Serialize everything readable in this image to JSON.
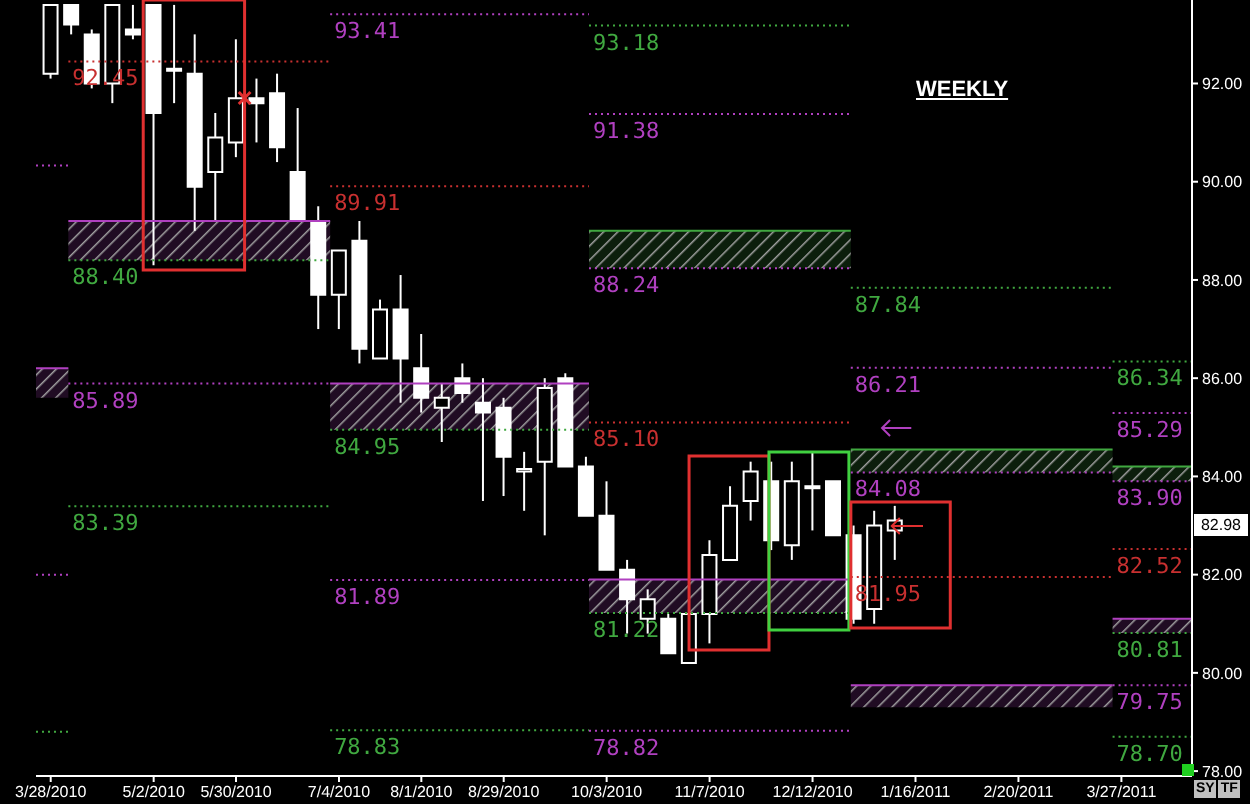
{
  "chart_data": {
    "type": "candlestick",
    "title": "WEEKLY",
    "color": "#ffffff",
    "legend": false,
    "grid": false,
    "marker": "none",
    "annotations": [
      {
        "text": "82.98",
        "y": 82.98
      },
      "SY",
      "TF"
    ],
    "xlim": [
      "2010-03-23",
      "2011-04-20"
    ],
    "xticks": [
      {
        "value": "2010-03-28",
        "label": "3/28/2010"
      },
      {
        "value": "2010-05-02",
        "label": "5/2/2010"
      },
      {
        "value": "2010-05-30",
        "label": "5/30/2010"
      },
      {
        "value": "2010-07-04",
        "label": "7/4/2010"
      },
      {
        "value": "2010-08-01",
        "label": "8/1/2010"
      },
      {
        "value": "2010-08-29",
        "label": "8/29/2010"
      },
      {
        "value": "2010-10-03",
        "label": "10/3/2010"
      },
      {
        "value": "2010-11-07",
        "label": "11/7/2010"
      },
      {
        "value": "2010-12-12",
        "label": "12/12/2010"
      },
      {
        "value": "2011-01-16",
        "label": "1/16/2011"
      },
      {
        "value": "2011-02-20",
        "label": "2/20/2011"
      },
      {
        "value": "2011-03-27",
        "label": "3/27/2011"
      }
    ],
    "ylim": [
      77.9,
      93.7
    ],
    "yticks": [
      {
        "value": 78,
        "label": "78.00"
      },
      {
        "value": 80,
        "label": "80.00"
      },
      {
        "value": 82,
        "label": "82.00"
      },
      {
        "value": 84,
        "label": "84.00"
      },
      {
        "value": 86,
        "label": "86.00"
      },
      {
        "value": 88,
        "label": "88.00"
      },
      {
        "value": 90,
        "label": "90.00"
      },
      {
        "value": 92,
        "label": "92.00"
      }
    ],
    "x": [
      "2010-03-28",
      "2010-04-04",
      "2010-04-11",
      "2010-04-18",
      "2010-04-25",
      "2010-05-02",
      "2010-05-09",
      "2010-05-16",
      "2010-05-23",
      "2010-05-30",
      "2010-06-06",
      "2010-06-13",
      "2010-06-20",
      "2010-06-27",
      "2010-07-04",
      "2010-07-11",
      "2010-07-18",
      "2010-07-25",
      "2010-08-01",
      "2010-08-08",
      "2010-08-15",
      "2010-08-22",
      "2010-08-29",
      "2010-09-05",
      "2010-09-12",
      "2010-09-19",
      "2010-09-26",
      "2010-10-03",
      "2010-10-10",
      "2010-10-17",
      "2010-10-24",
      "2010-10-31",
      "2010-11-07",
      "2010-11-14",
      "2010-11-21",
      "2010-11-28",
      "2010-12-05",
      "2010-12-12",
      "2010-12-19",
      "2010-12-26",
      "2011-01-02",
      "2011-01-09"
    ],
    "ohlc": [
      [
        92.2,
        93.6,
        92.1,
        93.6
      ],
      [
        93.6,
        93.6,
        93.0,
        93.2
      ],
      [
        93.0,
        93.1,
        91.9,
        92.0
      ],
      [
        92.0,
        93.6,
        91.6,
        93.6
      ],
      [
        93.1,
        93.6,
        92.9,
        93.0
      ],
      [
        93.6,
        93.6,
        88.3,
        91.4
      ],
      [
        92.3,
        93.6,
        91.6,
        92.3
      ],
      [
        92.2,
        93.0,
        89.0,
        89.9
      ],
      [
        90.2,
        91.4,
        89.2,
        90.9
      ],
      [
        90.8,
        92.9,
        90.5,
        91.7
      ],
      [
        91.7,
        92.1,
        90.8,
        91.6
      ],
      [
        91.8,
        92.2,
        90.4,
        90.7
      ],
      [
        90.2,
        91.5,
        89.2,
        89.2
      ],
      [
        89.2,
        89.5,
        87.0,
        87.7
      ],
      [
        87.7,
        88.6,
        87.0,
        88.6
      ],
      [
        88.8,
        89.2,
        86.3,
        86.6
      ],
      [
        86.4,
        87.6,
        86.4,
        87.4
      ],
      [
        87.4,
        88.1,
        85.5,
        86.4
      ],
      [
        86.2,
        86.9,
        85.3,
        85.6
      ],
      [
        85.4,
        85.9,
        84.7,
        85.6
      ],
      [
        86.0,
        86.3,
        85.5,
        85.7
      ],
      [
        85.5,
        86.0,
        83.5,
        85.3
      ],
      [
        85.4,
        85.6,
        83.6,
        84.4
      ],
      [
        84.1,
        84.5,
        83.3,
        84.15
      ],
      [
        84.3,
        86.0,
        82.8,
        85.8
      ],
      [
        86.0,
        86.1,
        84.2,
        84.2
      ],
      [
        84.2,
        84.4,
        83.2,
        83.2
      ],
      [
        83.2,
        83.9,
        82.1,
        82.1
      ],
      [
        82.1,
        82.3,
        80.8,
        81.5
      ],
      [
        81.1,
        81.7,
        80.8,
        81.5
      ],
      [
        81.1,
        81.2,
        80.4,
        80.4
      ],
      [
        80.2,
        81.2,
        80.2,
        81.2
      ],
      [
        81.2,
        82.7,
        80.6,
        82.4
      ],
      [
        82.3,
        83.8,
        82.3,
        83.4
      ],
      [
        83.5,
        84.3,
        83.1,
        84.1
      ],
      [
        83.9,
        84.3,
        82.5,
        82.7
      ],
      [
        82.6,
        84.3,
        82.3,
        83.9
      ],
      [
        83.8,
        84.5,
        82.9,
        83.8
      ],
      [
        83.9,
        83.9,
        82.8,
        82.8
      ],
      [
        82.8,
        83.0,
        81.0,
        81.1
      ],
      [
        81.3,
        83.3,
        81.0,
        83.0
      ],
      [
        82.9,
        83.4,
        82.3,
        83.1
      ]
    ],
    "series": [
      {
        "type": "line",
        "color": "#b040c0",
        "line_style": "dotted",
        "x": [
          "2010-03-23",
          "2010-04-03"
        ],
        "values": [
          90.33,
          90.33
        ]
      },
      {
        "type": "line",
        "color": "#b040c0",
        "line_style": "solid",
        "x": [
          "2010-03-23",
          "2010-04-03"
        ],
        "values": [
          86.2,
          86.2
        ],
        "upper": [
          86.2,
          86.2
        ],
        "lower": [
          85.6,
          85.6
        ]
      },
      {
        "type": "line",
        "color": "#b040c0",
        "line_style": "dotted",
        "x": [
          "2010-03-23",
          "2010-04-03"
        ],
        "values": [
          82.0,
          82.0
        ]
      },
      {
        "type": "line",
        "color": "#40a840",
        "line_style": "dotted",
        "x": [
          "2010-03-23",
          "2010-04-03"
        ],
        "values": [
          78.8,
          78.8
        ]
      },
      {
        "type": "line",
        "name": "92.45",
        "color": "#c83030",
        "line_style": "dotted",
        "x": [
          "2010-04-03",
          "2010-07-01"
        ],
        "values": [
          92.45,
          92.45
        ]
      },
      {
        "type": "line",
        "color": "#b040c0",
        "line_style": "solid",
        "x": [
          "2010-04-03",
          "2010-07-01"
        ],
        "values": [
          89.2,
          89.2
        ],
        "upper": [
          89.2,
          89.2
        ],
        "lower": [
          88.4,
          88.4
        ]
      },
      {
        "type": "line",
        "name": "88.40",
        "color": "#40a840",
        "line_style": "dotted",
        "x": [
          "2010-04-03",
          "2010-07-01"
        ],
        "values": [
          88.4,
          88.4
        ]
      },
      {
        "type": "line",
        "name": "85.89",
        "color": "#b040c0",
        "line_style": "dotted",
        "x": [
          "2010-04-03",
          "2010-07-01"
        ],
        "values": [
          85.89,
          85.89
        ]
      },
      {
        "type": "line",
        "name": "83.39",
        "color": "#40a840",
        "line_style": "dotted",
        "x": [
          "2010-04-03",
          "2010-07-01"
        ],
        "values": [
          83.39,
          83.39
        ]
      },
      {
        "type": "line",
        "name": "93.41",
        "color": "#b040c0",
        "line_style": "dotted",
        "x": [
          "2010-07-01",
          "2010-09-27"
        ],
        "values": [
          93.41,
          93.41
        ]
      },
      {
        "type": "line",
        "name": "89.91",
        "color": "#c83030",
        "line_style": "dotted",
        "x": [
          "2010-07-01",
          "2010-09-27"
        ],
        "values": [
          89.91,
          89.91
        ]
      },
      {
        "type": "line",
        "color": "#b040c0",
        "line_style": "solid",
        "x": [
          "2010-07-01",
          "2010-09-27"
        ],
        "values": [
          85.89,
          85.89
        ],
        "upper": [
          85.89,
          85.89
        ],
        "lower": [
          84.95,
          84.95
        ]
      },
      {
        "type": "line",
        "name": "84.95",
        "color": "#40a840",
        "line_style": "dotted",
        "x": [
          "2010-07-01",
          "2010-09-27"
        ],
        "values": [
          84.95,
          84.95
        ]
      },
      {
        "type": "line",
        "name": "81.89",
        "color": "#b040c0",
        "line_style": "dotted",
        "x": [
          "2010-07-01",
          "2010-09-27"
        ],
        "values": [
          81.89,
          81.89
        ]
      },
      {
        "type": "line",
        "name": "78.83",
        "color": "#40a840",
        "line_style": "dotted",
        "x": [
          "2010-07-01",
          "2010-09-27"
        ],
        "values": [
          78.83,
          78.83
        ]
      },
      {
        "type": "line",
        "name": "93.18",
        "color": "#40a840",
        "line_style": "dotted",
        "x": [
          "2010-09-27",
          "2010-12-25"
        ],
        "values": [
          93.18,
          93.18
        ]
      },
      {
        "type": "line",
        "name": "91.38",
        "color": "#b040c0",
        "line_style": "dotted",
        "x": [
          "2010-09-27",
          "2010-12-25"
        ],
        "values": [
          91.38,
          91.38
        ]
      },
      {
        "type": "line",
        "color": "#40a840",
        "line_style": "solid",
        "x": [
          "2010-09-27",
          "2010-12-25"
        ],
        "values": [
          89.0,
          89.0
        ],
        "upper": [
          89.0,
          89.0
        ],
        "lower": [
          88.24,
          88.24
        ]
      },
      {
        "type": "line",
        "name": "88.24",
        "color": "#b040c0",
        "line_style": "dotted",
        "x": [
          "2010-09-27",
          "2010-12-25"
        ],
        "values": [
          88.24,
          88.24
        ]
      },
      {
        "type": "line",
        "name": "85.10",
        "color": "#c83030",
        "line_style": "dotted",
        "x": [
          "2010-09-27",
          "2010-12-25"
        ],
        "values": [
          85.1,
          85.1
        ]
      },
      {
        "type": "line",
        "color": "#b040c0",
        "line_style": "solid",
        "x": [
          "2010-09-27",
          "2010-12-25"
        ],
        "values": [
          81.9,
          81.9
        ],
        "upper": [
          81.9,
          81.9
        ],
        "lower": [
          81.22,
          81.22
        ]
      },
      {
        "type": "line",
        "name": "81.22",
        "color": "#40a840",
        "line_style": "dotted",
        "x": [
          "2010-09-27",
          "2010-12-25"
        ],
        "values": [
          81.22,
          81.22
        ]
      },
      {
        "type": "line",
        "name": "78.82",
        "color": "#b040c0",
        "line_style": "dotted",
        "x": [
          "2010-09-27",
          "2010-12-25"
        ],
        "values": [
          78.82,
          78.82
        ]
      },
      {
        "type": "line",
        "name": "87.84",
        "color": "#40a840",
        "line_style": "dotted",
        "x": [
          "2010-12-25",
          "2011-03-24"
        ],
        "values": [
          87.84,
          87.84
        ]
      },
      {
        "type": "line",
        "name": "86.21",
        "color": "#b040c0",
        "line_style": "dotted",
        "x": [
          "2010-12-25",
          "2011-03-24"
        ],
        "values": [
          86.21,
          86.21
        ]
      },
      {
        "type": "line",
        "color": "#40a840",
        "line_style": "solid",
        "x": [
          "2010-12-25",
          "2011-03-24"
        ],
        "values": [
          84.55,
          84.55
        ],
        "upper": [
          84.55,
          84.55
        ],
        "lower": [
          84.08,
          84.08
        ]
      },
      {
        "type": "line",
        "name": "84.08",
        "color": "#b040c0",
        "line_style": "dotted",
        "x": [
          "2010-12-25",
          "2011-03-24"
        ],
        "values": [
          84.08,
          84.08
        ]
      },
      {
        "type": "line",
        "name": "81.95",
        "color": "#c83030",
        "line_style": "dotted",
        "x": [
          "2010-12-25",
          "2011-03-24"
        ],
        "values": [
          81.95,
          81.95
        ]
      },
      {
        "type": "line",
        "color": "#b040c0",
        "line_style": "solid",
        "x": [
          "2010-12-25",
          "2011-03-24"
        ],
        "values": [
          79.75,
          79.75
        ],
        "upper": [
          79.75,
          79.75
        ],
        "lower": [
          79.3,
          79.3
        ]
      },
      {
        "type": "line",
        "name": "86.34",
        "color": "#40a840",
        "line_style": "dotted",
        "x": [
          "2011-03-24",
          "2011-04-20"
        ],
        "values": [
          86.34,
          86.34
        ]
      },
      {
        "type": "line",
        "name": "85.29",
        "color": "#b040c0",
        "line_style": "dotted",
        "x": [
          "2011-03-24",
          "2011-04-20"
        ],
        "values": [
          85.29,
          85.29
        ]
      },
      {
        "type": "line",
        "color": "#40a840",
        "line_style": "solid",
        "x": [
          "2011-03-24",
          "2011-04-20"
        ],
        "values": [
          84.2,
          84.2
        ],
        "upper": [
          84.2,
          84.2
        ],
        "lower": [
          83.9,
          83.9
        ]
      },
      {
        "type": "line",
        "name": "83.90",
        "color": "#b040c0",
        "line_style": "dotted",
        "x": [
          "2011-03-24",
          "2011-04-20"
        ],
        "values": [
          83.9,
          83.9
        ]
      },
      {
        "type": "line",
        "name": "82.52",
        "color": "#c83030",
        "line_style": "dotted",
        "x": [
          "2011-03-24",
          "2011-04-20"
        ],
        "values": [
          82.52,
          82.52
        ]
      },
      {
        "type": "line",
        "color": "#b040c0",
        "line_style": "solid",
        "x": [
          "2011-03-24",
          "2011-04-20"
        ],
        "values": [
          81.1,
          81.1
        ],
        "upper": [
          81.1,
          81.1
        ],
        "lower": [
          80.81,
          80.81
        ]
      },
      {
        "type": "line",
        "name": "80.81",
        "color": "#40a840",
        "line_style": "dotted",
        "x": [
          "2011-03-24",
          "2011-04-20"
        ],
        "values": [
          80.81,
          80.81
        ]
      },
      {
        "type": "line",
        "name": "79.75",
        "color": "#b040c0",
        "line_style": "dotted",
        "x": [
          "2011-03-24",
          "2011-04-20"
        ],
        "values": [
          79.75,
          79.75
        ]
      },
      {
        "type": "line",
        "name": "78.70",
        "color": "#40a840",
        "line_style": "dotted",
        "x": [
          "2011-03-24",
          "2011-04-20"
        ],
        "values": [
          78.7,
          78.7
        ]
      }
    ]
  }
}
